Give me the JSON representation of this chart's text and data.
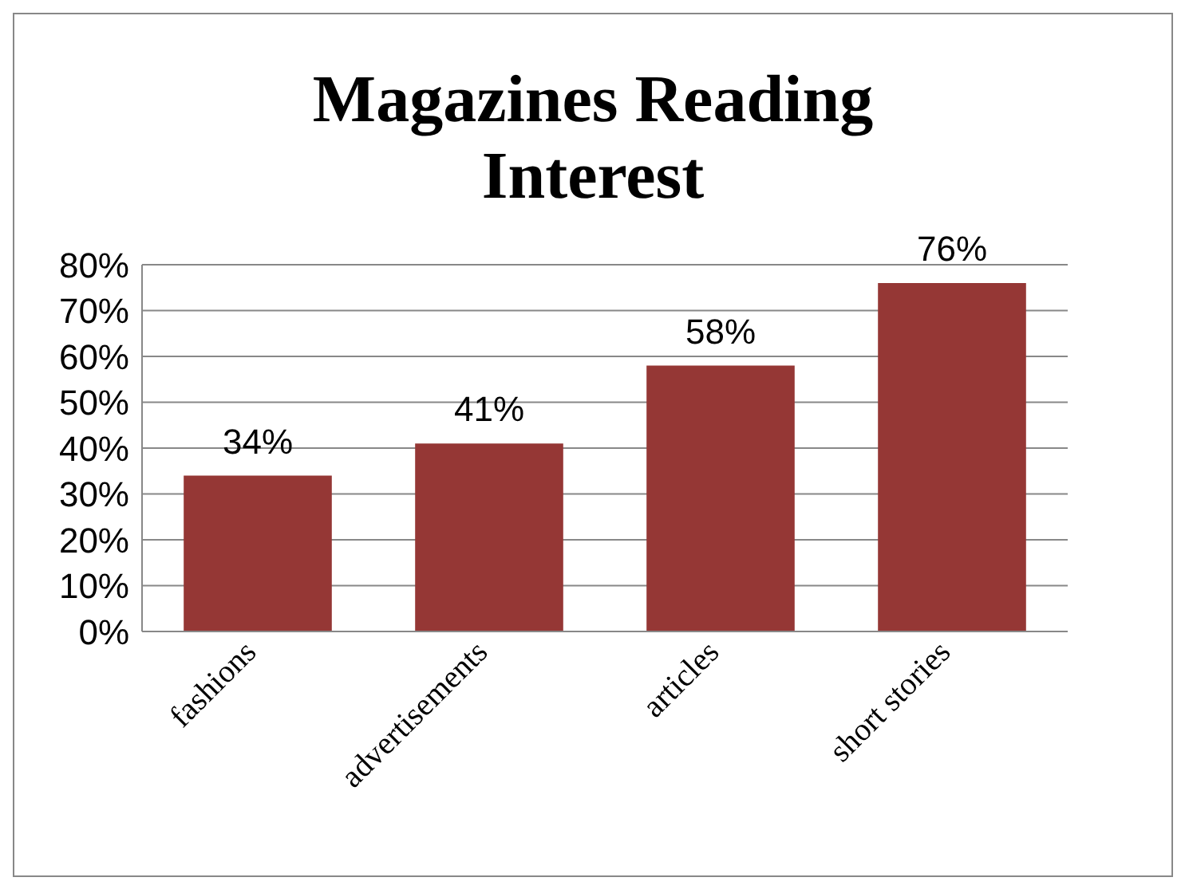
{
  "chart_data": {
    "type": "bar",
    "title": "Magazines Reading Interest",
    "categories": [
      "fashions",
      "advertisements",
      "articles",
      "short stories"
    ],
    "values": [
      34,
      41,
      58,
      76
    ],
    "value_labels": [
      "34%",
      "41%",
      "58%",
      "76%"
    ],
    "color": "#953735",
    "ylim": [
      0,
      80
    ],
    "yticks": [
      {
        "value": 0,
        "label": "0%"
      },
      {
        "value": 10,
        "label": "10%"
      },
      {
        "value": 20,
        "label": "20%"
      },
      {
        "value": 30,
        "label": "30%"
      },
      {
        "value": 40,
        "label": "40%"
      },
      {
        "value": 50,
        "label": "50%"
      },
      {
        "value": 60,
        "label": "60%"
      },
      {
        "value": 70,
        "label": "70%"
      },
      {
        "value": 80,
        "label": "80%"
      }
    ],
    "grid": "y",
    "legend": false
  }
}
